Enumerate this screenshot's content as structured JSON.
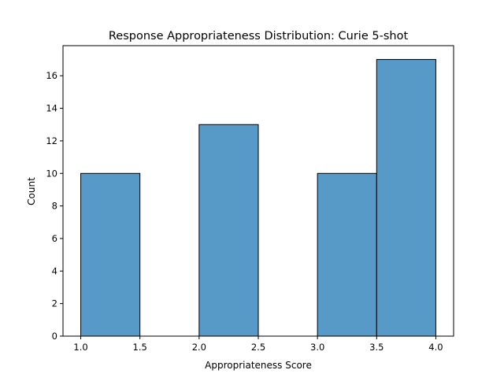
{
  "chart_data": {
    "type": "bar",
    "title": "Response Appropriateness Distribution: Curie 5-shot",
    "xlabel": "Appropriateness Score",
    "ylabel": "Count",
    "bins": [
      {
        "start": 1.0,
        "end": 1.5,
        "count": 10
      },
      {
        "start": 1.5,
        "end": 2.0,
        "count": 0
      },
      {
        "start": 2.0,
        "end": 2.5,
        "count": 13
      },
      {
        "start": 2.5,
        "end": 3.0,
        "count": 0
      },
      {
        "start": 3.0,
        "end": 3.5,
        "count": 10
      },
      {
        "start": 3.5,
        "end": 4.0,
        "count": 17
      }
    ],
    "bars": [
      {
        "x0": 1.0,
        "x1": 1.5,
        "value": 10
      },
      {
        "x0": 2.0,
        "x1": 2.5,
        "value": 13
      },
      {
        "x0": 3.0,
        "x1": 3.5,
        "value": 10
      },
      {
        "x0": 3.5,
        "x1": 4.0,
        "value": 17
      }
    ],
    "xlim": [
      0.85,
      4.15
    ],
    "ylim": [
      0,
      17.85
    ],
    "xticks": [
      1.0,
      1.5,
      2.0,
      2.5,
      3.0,
      3.5,
      4.0
    ],
    "xtick_labels": [
      "1.0",
      "1.5",
      "2.0",
      "2.5",
      "3.0",
      "3.5",
      "4.0"
    ],
    "yticks": [
      0,
      2,
      4,
      6,
      8,
      10,
      12,
      14,
      16
    ],
    "ytick_labels": [
      "0",
      "2",
      "4",
      "6",
      "8",
      "10",
      "12",
      "14",
      "16"
    ],
    "grid": false,
    "bar_color": "#5799c7",
    "edge_color": "#000000"
  }
}
